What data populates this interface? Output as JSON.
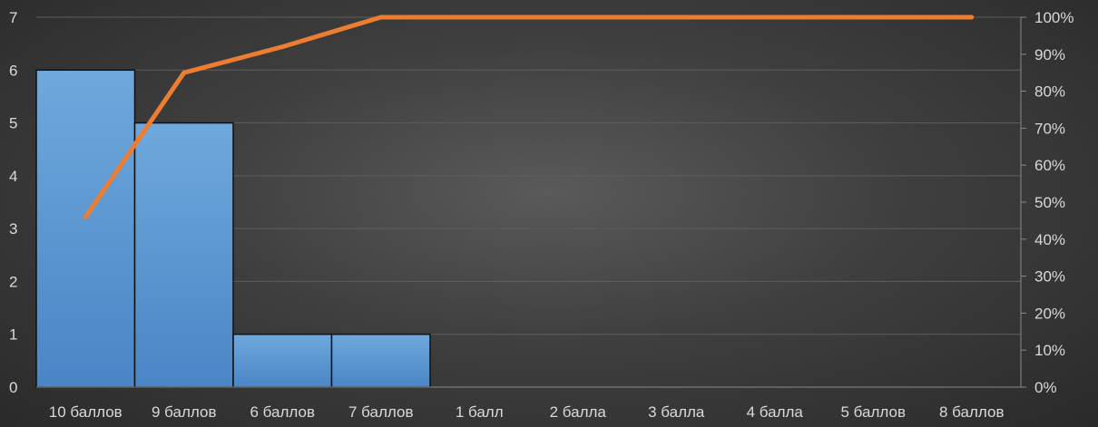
{
  "chart_data": {
    "type": "bar",
    "categories": [
      "10 баллов",
      "9 баллов",
      "6 баллов",
      "7 баллов",
      "1 балл",
      "2 балла",
      "3 балла",
      "4 балла",
      "5 баллов",
      "8 баллов"
    ],
    "series": [
      {
        "type": "bar",
        "axis": "left",
        "values": [
          6,
          5,
          1,
          1,
          0,
          0,
          0,
          0,
          0,
          0
        ]
      },
      {
        "type": "line",
        "axis": "right",
        "values": [
          46,
          85,
          92,
          100,
          100,
          100,
          100,
          100,
          100,
          100
        ]
      }
    ],
    "y_left": {
      "range": [
        0,
        7
      ],
      "ticks": [
        0,
        1,
        2,
        3,
        4,
        5,
        6,
        7
      ]
    },
    "y_right": {
      "range": [
        0,
        100
      ],
      "ticks": [
        "0%",
        "10%",
        "20%",
        "30%",
        "40%",
        "50%",
        "60%",
        "70%",
        "80%",
        "90%",
        "100%"
      ]
    },
    "grid": true,
    "legend": "none",
    "colors": {
      "bar": "#5b9bd5",
      "bar_border": "#111111",
      "line": "#ed7d31",
      "text": "#d9d9d9",
      "grid": "#5e5e5e"
    }
  }
}
